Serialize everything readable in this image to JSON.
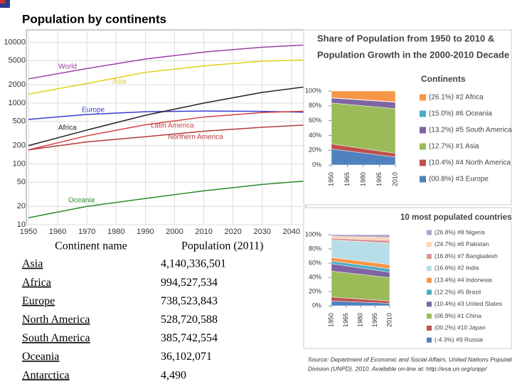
{
  "title": "Population by continents",
  "chart_data": [
    {
      "type": "line",
      "log_scale": true,
      "grid": true,
      "x": [
        1950,
        1970,
        1990,
        2010,
        2030,
        2050
      ],
      "xlim": [
        1950,
        2050
      ],
      "xticks": [
        1950,
        1960,
        1970,
        1980,
        1990,
        2000,
        2010,
        2020,
        2030,
        2040
      ],
      "ylim": [
        10,
        16000
      ],
      "yticks": [
        10,
        20,
        50,
        100,
        200,
        500,
        1000,
        2000,
        5000,
        10000
      ],
      "series": [
        {
          "name": "World",
          "color": "#9b3fa6",
          "values": [
            2500,
            3700,
            5300,
            6900,
            8300,
            9300
          ]
        },
        {
          "name": "Asia",
          "color": "#e3cf1a",
          "values": [
            1400,
            2100,
            3200,
            4100,
            4900,
            5200
          ]
        },
        {
          "name": "Europe",
          "color": "#3b3bd8",
          "values": [
            540,
            650,
            720,
            740,
            730,
            700
          ]
        },
        {
          "name": "Africa",
          "color": "#222222",
          "values": [
            200,
            360,
            630,
            1000,
            1500,
            2000
          ]
        },
        {
          "name": "Latin America",
          "color": "#d94040",
          "values": [
            170,
            290,
            440,
            590,
            700,
            750
          ]
        },
        {
          "name": "Northern America",
          "color": "#b33a3a",
          "values": [
            170,
            230,
            280,
            345,
            400,
            450
          ]
        },
        {
          "name": "Oceania",
          "color": "#2e8b2e",
          "values": [
            13,
            20,
            27,
            36,
            46,
            55
          ]
        }
      ]
    },
    {
      "type": "stacked_area",
      "title": [
        "Share of Population from 1950 to 2010 &",
        "Population Growth in the 2000-2010 Decade"
      ],
      "legend_title": "Continents",
      "x": [
        1950,
        2010
      ],
      "xlim": [
        1950,
        2010
      ],
      "xticks": [
        1950,
        1965,
        1980,
        1995,
        2010
      ],
      "ylim": [
        0,
        100
      ],
      "yticks": [
        {
          "value": 0,
          "label": "0%"
        },
        {
          "value": 20,
          "label": "20%"
        },
        {
          "value": 40,
          "label": "40%"
        },
        {
          "value": 60,
          "label": "60%"
        },
        {
          "value": 80,
          "label": "80%"
        },
        {
          "value": 100,
          "label": "100%"
        }
      ],
      "series": [
        {
          "name": "(00.8%) #3 Europe",
          "color": "#4f81bd",
          "values": [
            21.7,
            10.7
          ]
        },
        {
          "name": "(10.4%) #4 North America",
          "color": "#c0504d",
          "values": [
            6.8,
            5.1
          ]
        },
        {
          "name": "(12.7%) #1 Asia",
          "color": "#9bbb59",
          "values": [
            55.4,
            60.4
          ]
        },
        {
          "name": "(13.2%) #5 South America",
          "color": "#8064a2",
          "values": [
            6.6,
            8.6
          ]
        },
        {
          "name": "(15.0%) #6 Oceania",
          "color": "#4bacc6",
          "values": [
            0.5,
            0.5
          ]
        },
        {
          "name": "(26.1%) #2 Africa",
          "color": "#f79646",
          "values": [
            9.0,
            14.7
          ]
        }
      ]
    },
    {
      "type": "stacked_area",
      "title": [
        "10 most populated countries"
      ],
      "x": [
        1950,
        2010
      ],
      "xlim": [
        1950,
        2010
      ],
      "xticks": [
        1950,
        1965,
        1980,
        1995,
        2010
      ],
      "ylim": [
        0,
        100
      ],
      "yticks": [
        {
          "value": 0,
          "label": "0%"
        },
        {
          "value": 20,
          "label": "20%"
        },
        {
          "value": 40,
          "label": "40%"
        },
        {
          "value": 60,
          "label": "60%"
        },
        {
          "value": 80,
          "label": "80%"
        },
        {
          "value": 100,
          "label": "100%"
        }
      ],
      "series": [
        {
          "name": "(-4.3%) #9 Russia",
          "color": "#4f81bd",
          "values": [
            6.8,
            3.5
          ]
        },
        {
          "name": "(00.2%) #10 Japan",
          "color": "#c0504d",
          "values": [
            5.5,
            3.1
          ]
        },
        {
          "name": "(06.9%) #1 China",
          "color": "#9bbb59",
          "values": [
            36.5,
            33.0
          ]
        },
        {
          "name": "(10.4%) #3 United States",
          "color": "#8064a2",
          "values": [
            10.5,
            7.6
          ]
        },
        {
          "name": "(12.2%) #5 Brazil",
          "color": "#4bacc6",
          "values": [
            3.6,
            4.8
          ]
        },
        {
          "name": "(13.4%) #4 Indonesia",
          "color": "#f79646",
          "values": [
            5.1,
            5.9
          ]
        },
        {
          "name": "(16.6%) #2 India",
          "color": "#b7dee8",
          "values": [
            24.6,
            30.2
          ]
        },
        {
          "name": "(16.8%) #7 Bangladesh",
          "color": "#d99694",
          "values": [
            2.5,
            3.7
          ]
        },
        {
          "name": "(24.7%) #6 Pakistan",
          "color": "#fcd5b4",
          "values": [
            2.5,
            4.3
          ]
        },
        {
          "name": "(26.8%) #8 Nigeria",
          "color": "#b3a2c7",
          "values": [
            2.4,
            3.9
          ]
        }
      ]
    }
  ],
  "table": {
    "headers": [
      "Continent name",
      "Population (2011)"
    ],
    "rows": [
      [
        "Asia",
        "4,140,336,501"
      ],
      [
        "Africa",
        "994,527,534"
      ],
      [
        "Europe",
        "738,523,843"
      ],
      [
        "North America",
        "528,720,588"
      ],
      [
        "South America",
        "385,742,554"
      ],
      [
        "Oceania",
        "36,102,071"
      ],
      [
        "Antarctica",
        "4,490"
      ]
    ]
  },
  "source": [
    "Source: Department of Economic and Social Affairs, United Nations Population",
    "Division (UNPD). 2010. Available on-line at: http://esa.un.org/unpp/"
  ]
}
